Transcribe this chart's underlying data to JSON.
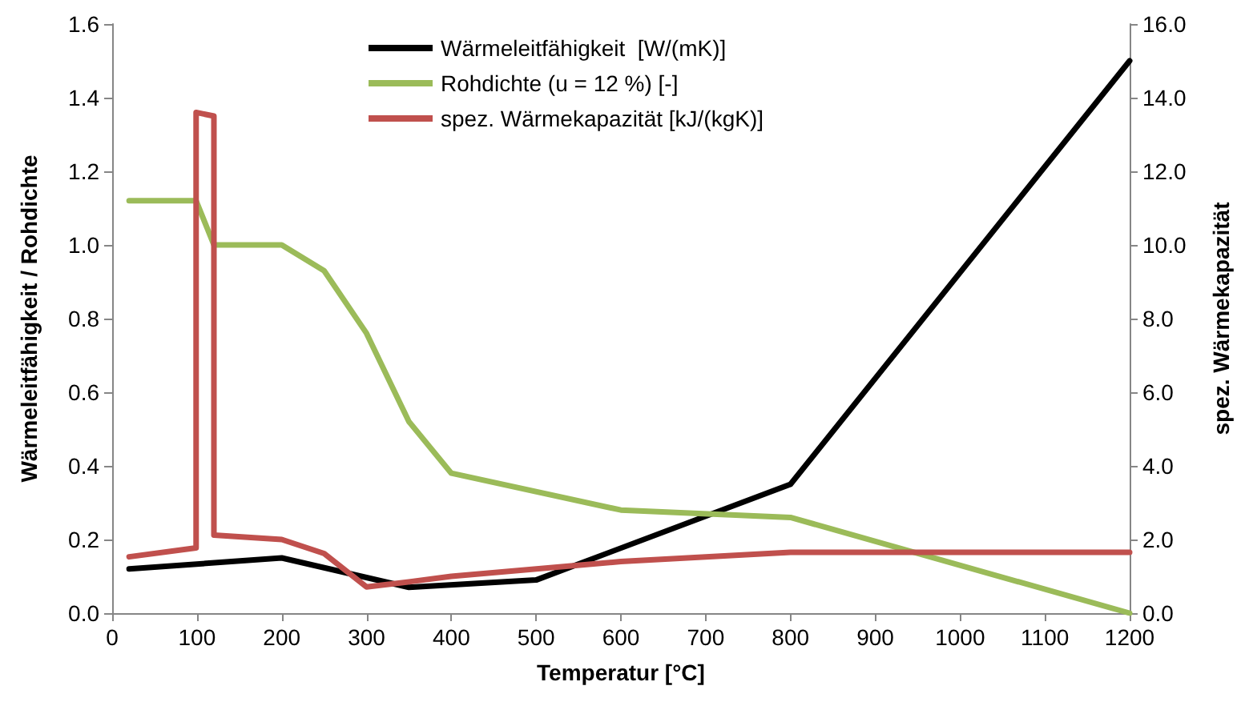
{
  "chart_data": {
    "type": "line",
    "xlabel": "Temperatur [°C]",
    "ylabel": "Wärmeleitfähigkeit / Rohdichte",
    "y2label": "spez. Wärmekapazität",
    "xlim": [
      0,
      1200
    ],
    "xticks": [
      0,
      100,
      200,
      300,
      400,
      500,
      600,
      700,
      800,
      900,
      1000,
      1100,
      1200
    ],
    "ylim": [
      0,
      1.6
    ],
    "yticks": [
      {
        "value": 0,
        "label": "0.0"
      },
      {
        "value": 0.2,
        "label": "0.2"
      },
      {
        "value": 0.4,
        "label": "0.4"
      },
      {
        "value": 0.6,
        "label": "0.6"
      },
      {
        "value": 0.8,
        "label": "0.8"
      },
      {
        "value": 1,
        "label": "1.0"
      },
      {
        "value": 1.2,
        "label": "1.2"
      },
      {
        "value": 1.4,
        "label": "1.4"
      },
      {
        "value": 1.6,
        "label": "1.6"
      }
    ],
    "y2lim": [
      0,
      16
    ],
    "y2ticks": [
      {
        "value": 0,
        "label": "0.0"
      },
      {
        "value": 2,
        "label": "2.0"
      },
      {
        "value": 4,
        "label": "4.0"
      },
      {
        "value": 6,
        "label": "6.0"
      },
      {
        "value": 8,
        "label": "8.0"
      },
      {
        "value": 10,
        "label": "10.0"
      },
      {
        "value": 12,
        "label": "12.0"
      },
      {
        "value": 14,
        "label": "14.0"
      },
      {
        "value": 16,
        "label": "16.0"
      }
    ],
    "grid": false,
    "legend": "top",
    "marker": "none",
    "line_style": "solid",
    "series": [
      {
        "name": "Wärmeleitfähigkeit  [W/(mK)]",
        "color": "#000000",
        "x": [
          20,
          200,
          350,
          500,
          800,
          1200
        ],
        "values": [
          0.12,
          0.15,
          0.07,
          0.09,
          0.35,
          1.5
        ]
      },
      {
        "name": "Rohdichte (u = 12 %) [-]",
        "color": "#9bbb59",
        "x": [
          20,
          99,
          120,
          200,
          250,
          300,
          350,
          400,
          600,
          800,
          1200
        ],
        "values": [
          1.12,
          1.12,
          1.0,
          1.0,
          0.93,
          0.76,
          0.52,
          0.38,
          0.28,
          0.26,
          0
        ]
      },
      {
        "name": "spez. Wärmekapazität [kJ/(kgK)]",
        "color": "#c0504d",
        "axis": "y2",
        "x": [
          20,
          99,
          99,
          120,
          120,
          200,
          250,
          300,
          350,
          400,
          600,
          800,
          1200
        ],
        "values": [
          1.53,
          1.77,
          13.6,
          13.5,
          2.12,
          2.0,
          1.62,
          0.71,
          0.85,
          1.0,
          1.4,
          1.65,
          1.65
        ]
      }
    ]
  }
}
